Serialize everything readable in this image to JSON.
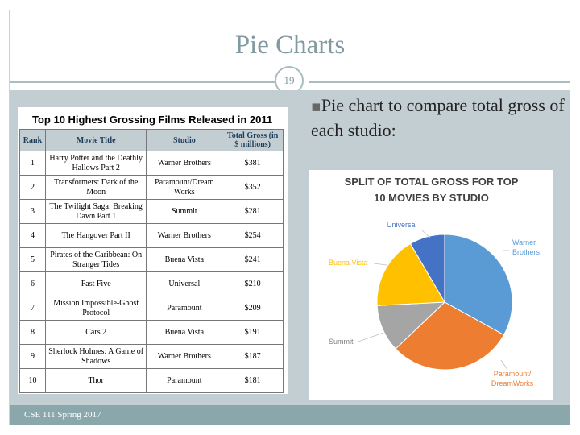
{
  "slide": {
    "title": "Pie Charts",
    "page_number": "19",
    "footer": "CSE 111 Spring 2017"
  },
  "table": {
    "title": "Top 10 Highest Grossing Films Released in 2011",
    "headers": [
      "Rank",
      "Movie Title",
      "Studio",
      "Total Gross (in $ millions)"
    ],
    "rows": [
      [
        "1",
        "Harry Potter and the Deathly Hallows Part 2",
        "Warner Brothers",
        "$381"
      ],
      [
        "2",
        "Transformers: Dark of the Moon",
        "Paramount/Dream Works",
        "$352"
      ],
      [
        "3",
        "The Twilight Saga: Breaking Dawn Part 1",
        "Summit",
        "$281"
      ],
      [
        "4",
        "The Hangover Part II",
        "Warner Brothers",
        "$254"
      ],
      [
        "5",
        "Pirates of the Caribbean: On Stranger Tides",
        "Buena Vista",
        "$241"
      ],
      [
        "6",
        "Fast Five",
        "Universal",
        "$210"
      ],
      [
        "7",
        "Mission Impossible-Ghost Protocol",
        "Paramount",
        "$209"
      ],
      [
        "8",
        "Cars 2",
        "Buena Vista",
        "$191"
      ],
      [
        "9",
        "Sherlock Holmes: A Game of Shadows",
        "Warner Brothers",
        "$187"
      ],
      [
        "10",
        "Thor",
        "Paramount",
        "$181"
      ]
    ]
  },
  "bullet": {
    "mark": "▪",
    "text": "Pie chart to compare total gross of each studio:"
  },
  "chart_data": {
    "type": "pie",
    "title_line1": "SPLIT OF TOTAL GROSS  FOR TOP",
    "title_line2": "10 MOVIES  BY STUDIO",
    "slices": [
      {
        "label": "Warner Brothers",
        "label_line1": "Warner",
        "label_line2": "Brothers",
        "value": 822,
        "color": "#5b9bd5"
      },
      {
        "label": "Paramount/DreamWorks",
        "label_line1": "Paramount/",
        "label_line2": "DreamWorks",
        "value": 742,
        "color": "#ed7d31"
      },
      {
        "label": "Summit",
        "label_line1": "Summit",
        "label_line2": "",
        "value": 281,
        "color": "#a5a5a5"
      },
      {
        "label": "Buena Vista",
        "label_line1": "Buena Vista",
        "label_line2": "",
        "value": 432,
        "color": "#ffc000"
      },
      {
        "label": "Universal",
        "label_line1": "Universal",
        "label_line2": "",
        "value": 210,
        "color": "#4472c4"
      }
    ]
  }
}
